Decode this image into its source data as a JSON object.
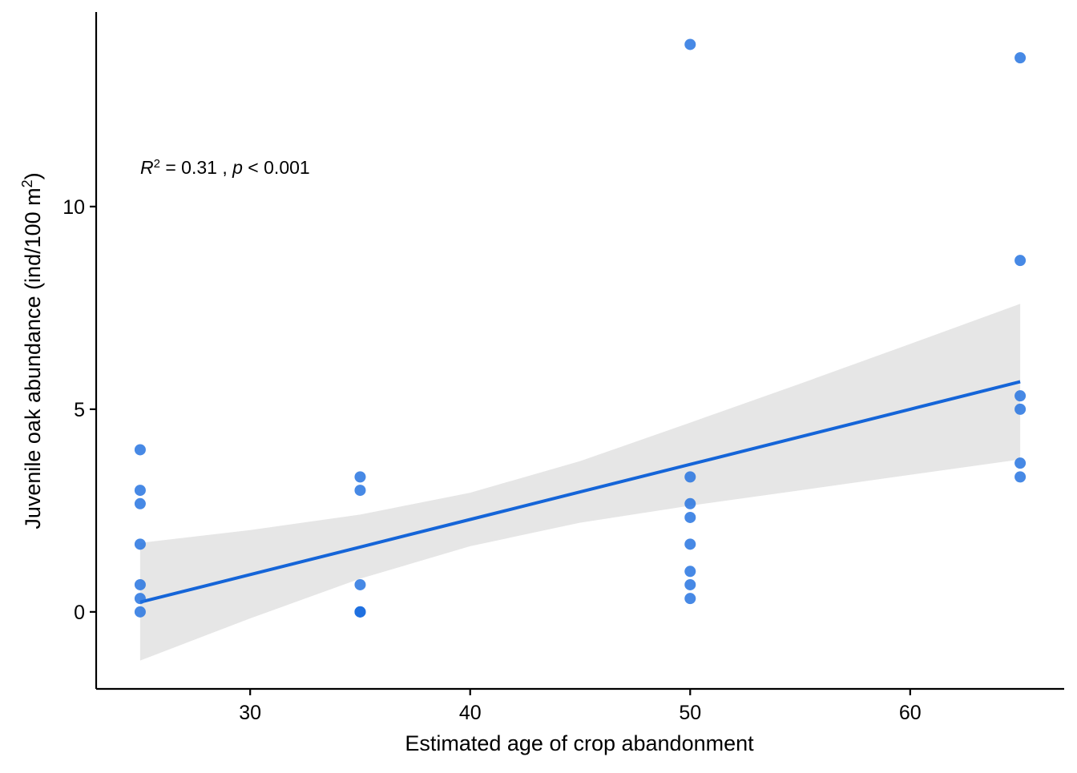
{
  "chart_data": {
    "type": "scatter",
    "title": "",
    "xlabel": "Estimated age of crop abandonment",
    "ylabel": {
      "main": "Juvenile oak abundance (ind/100 m",
      "sup": "2",
      "close": ")"
    },
    "xlim": [
      23,
      67
    ],
    "ylim": [
      -1.9,
      14.8
    ],
    "x_ticks": [
      30,
      40,
      50,
      60
    ],
    "y_ticks": [
      0,
      5,
      10
    ],
    "grid": false,
    "legend": "none",
    "point_color": "#1f6fdf",
    "line_color": "#1565d8",
    "band_color": "#e6e6e6",
    "points": [
      {
        "x": 25,
        "y": 4.0
      },
      {
        "x": 25,
        "y": 3.0
      },
      {
        "x": 25,
        "y": 2.67
      },
      {
        "x": 25,
        "y": 1.67
      },
      {
        "x": 25,
        "y": 0.67
      },
      {
        "x": 25,
        "y": 0.33
      },
      {
        "x": 25,
        "y": 0.0
      },
      {
        "x": 35,
        "y": 3.33
      },
      {
        "x": 35,
        "y": 3.0
      },
      {
        "x": 35,
        "y": 0.67
      },
      {
        "x": 35,
        "y": 0.0
      },
      {
        "x": 35,
        "y": 0.0
      },
      {
        "x": 35,
        "y": 0.0
      },
      {
        "x": 50,
        "y": 14.0
      },
      {
        "x": 50,
        "y": 3.33
      },
      {
        "x": 50,
        "y": 2.67
      },
      {
        "x": 50,
        "y": 2.33
      },
      {
        "x": 50,
        "y": 1.67
      },
      {
        "x": 50,
        "y": 1.0
      },
      {
        "x": 50,
        "y": 0.67
      },
      {
        "x": 50,
        "y": 0.33
      },
      {
        "x": 65,
        "y": 13.67
      },
      {
        "x": 65,
        "y": 8.67
      },
      {
        "x": 65,
        "y": 5.33
      },
      {
        "x": 65,
        "y": 5.0
      },
      {
        "x": 65,
        "y": 3.67
      },
      {
        "x": 65,
        "y": 3.33
      }
    ],
    "fit": {
      "x": [
        25,
        30,
        35,
        40,
        45,
        50,
        55,
        60,
        65
      ],
      "y": [
        0.24,
        0.92,
        1.6,
        2.28,
        2.96,
        3.64,
        4.32,
        5.0,
        5.68
      ],
      "lower": [
        -1.2,
        -0.16,
        0.82,
        1.62,
        2.2,
        2.62,
        3.0,
        3.38,
        3.76
      ],
      "upper": [
        1.7,
        2.02,
        2.4,
        2.94,
        3.72,
        4.67,
        5.63,
        6.61,
        7.6
      ]
    },
    "annotation": {
      "r_symbol": "R",
      "r_exp": "2",
      "r_value": " = 0.31 , ",
      "p_symbol": "p",
      "p_value": " < 0.001"
    }
  }
}
